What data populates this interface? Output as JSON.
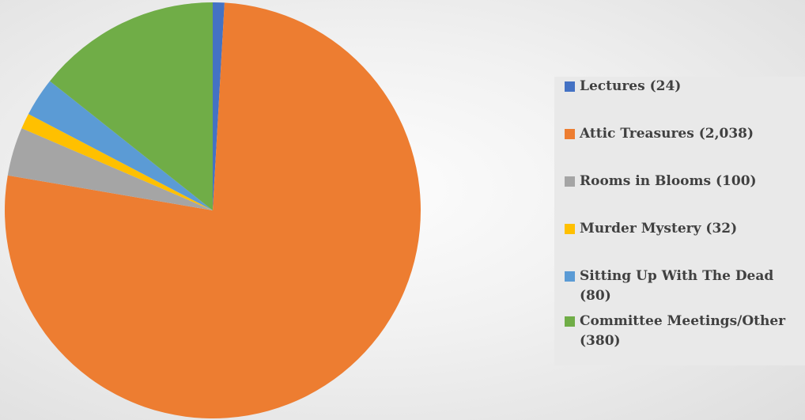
{
  "chart_data": {
    "type": "pie",
    "title": "",
    "slices": [
      {
        "label": "Lectures (24)",
        "category": "Lectures",
        "value": 24,
        "color": "#4472c4"
      },
      {
        "label": "Attic Treasures (2,038)",
        "category": "Attic Treasures",
        "value": 2038,
        "color": "#ed7d31"
      },
      {
        "label": "Rooms in Blooms (100)",
        "category": "Rooms in Blooms",
        "value": 100,
        "color": "#a5a5a5"
      },
      {
        "label": "Murder Mystery (32)",
        "category": "Murder Mystery",
        "value": 32,
        "color": "#ffc000"
      },
      {
        "label": "Sitting Up With The Dead (80)",
        "category": "Sitting Up With The Dead",
        "value": 80,
        "color": "#5b9bd5"
      },
      {
        "label": "Committee Meetings/Other (380)",
        "category": "Committee Meetings/Other",
        "value": 380,
        "color": "#70ad47"
      }
    ],
    "legend_position": "right",
    "start_angle": "top",
    "direction": "clockwise"
  }
}
